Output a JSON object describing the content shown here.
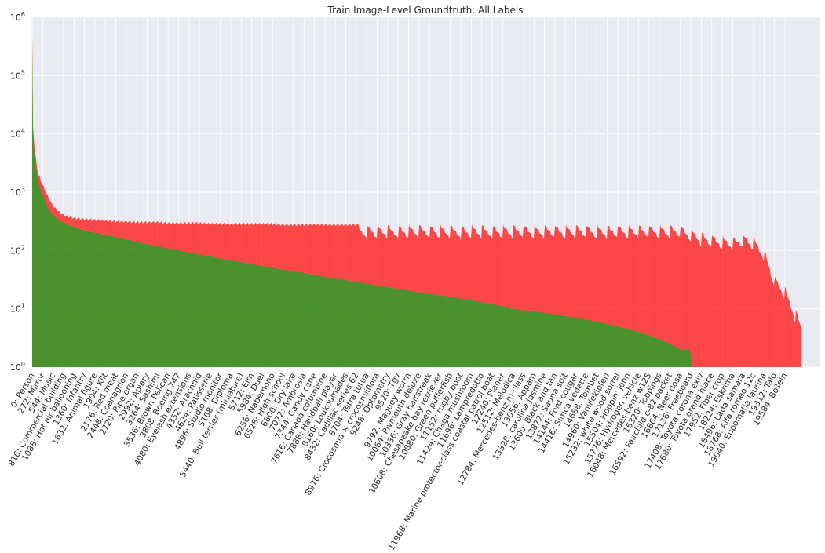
{
  "chart_data": {
    "type": "bar",
    "title": "Train Image-Level Groundtruth: All Labels",
    "xlabel": "",
    "ylabel": "",
    "yscale": "log",
    "ylim": [
      1,
      1000000
    ],
    "grid": true,
    "legend": "none",
    "n_labels": 19995,
    "colors": {
      "green": "#2ca02c",
      "red": "#ff2a2a",
      "plot_bg": "#eaeaf2",
      "grid": "#ffffff"
    },
    "yticks": [
      {
        "value": 1,
        "base": "10",
        "exp": "0"
      },
      {
        "value": 10,
        "base": "10",
        "exp": "1"
      },
      {
        "value": 100,
        "base": "10",
        "exp": "2"
      },
      {
        "value": 1000,
        "base": "10",
        "exp": "3"
      },
      {
        "value": 10000,
        "base": "10",
        "exp": "4"
      },
      {
        "value": 100000,
        "base": "10",
        "exp": "5"
      },
      {
        "value": 1000000,
        "base": "10",
        "exp": "6"
      }
    ],
    "xtick_labels": [
      {
        "index": 0,
        "text": "0: Person"
      },
      {
        "index": 272,
        "text": "272: Mirror"
      },
      {
        "index": 544,
        "text": "544: Music"
      },
      {
        "index": 816,
        "text": "816: Commercial building"
      },
      {
        "index": 1088,
        "text": "1088: Hot air ballooning"
      },
      {
        "index": 1360,
        "text": "1360: Infantry"
      },
      {
        "index": 1632,
        "text": "1632: Animal figure"
      },
      {
        "index": 1904,
        "text": "1904: Kilt"
      },
      {
        "index": 2176,
        "text": "2176: Red meat"
      },
      {
        "index": 2448,
        "text": "2448: Coenagrion"
      },
      {
        "index": 2720,
        "text": "2720: Pipe organ"
      },
      {
        "index": 2992,
        "text": "2992: Apiary"
      },
      {
        "index": 3264,
        "text": "3264: Sashimi"
      },
      {
        "index": 3536,
        "text": "3536: Brown Pelican"
      },
      {
        "index": 3808,
        "text": "3808: Boeing 747"
      },
      {
        "index": 4080,
        "text": "4080: Eyelash extensions"
      },
      {
        "index": 4352,
        "text": "4352: Arachnid"
      },
      {
        "index": 4624,
        "text": "4624: Patisserie"
      },
      {
        "index": 4896,
        "text": "4896: Studio monitor"
      },
      {
        "index": 5168,
        "text": "5168: Diploma"
      },
      {
        "index": 5440,
        "text": "5440: Bull terrier (miniature)"
      },
      {
        "index": 5712,
        "text": "5712: Elm"
      },
      {
        "index": 5984,
        "text": "5984: Duel"
      },
      {
        "index": 6256,
        "text": "6256: Nabemono"
      },
      {
        "index": 6528,
        "text": "6528: High school"
      },
      {
        "index": 6800,
        "text": "6800: Dry lake"
      },
      {
        "index": 7072,
        "text": "7072: Ambrosia"
      },
      {
        "index": 7344,
        "text": "7344: Candy cane"
      },
      {
        "index": 7616,
        "text": "7616: Canada columbine"
      },
      {
        "index": 7888,
        "text": "7888: Handball player"
      },
      {
        "index": 8160,
        "text": "8160: Loukoumades"
      },
      {
        "index": 8432,
        "text": "8432: Cadillac series 62"
      },
      {
        "index": 8704,
        "text": "8704: Tetra tutua"
      },
      {
        "index": 8976,
        "text": "8976: Crocosmia × crocosmiiflora"
      },
      {
        "index": 9248,
        "text": "9248: Optometry"
      },
      {
        "index": 9520,
        "text": "9520: Tgv"
      },
      {
        "index": 9792,
        "text": "9792: Maguey worm"
      },
      {
        "index": 10064,
        "text": "10064: Plymouth deluxe"
      },
      {
        "index": 10336,
        "text": "10336: Gray hairstreak"
      },
      {
        "index": 10608,
        "text": "10608: Chesapeake bay retriever"
      },
      {
        "index": 10880,
        "text": "10880: Green pufferfish"
      },
      {
        "index": 11152,
        "text": "11152: rugby boot"
      },
      {
        "index": 11424,
        "text": "11424: Chaga mushroom"
      },
      {
        "index": 11696,
        "text": "11696: Lampredotto"
      },
      {
        "index": 11968,
        "text": "11968: Marine protector-class coastal patrol boat"
      },
      {
        "index": 12240,
        "text": "12240: Planer"
      },
      {
        "index": 12512,
        "text": "12512: Melodica"
      },
      {
        "index": 12784,
        "text": "12784: Mercedes-benz m-class"
      },
      {
        "index": 13056,
        "text": "13056: Appam"
      },
      {
        "index": 13328,
        "text": "13328: carolina jasmine"
      },
      {
        "index": 13600,
        "text": "13600: Black and tan"
      },
      {
        "index": 13872,
        "text": "13872: Sauna suit"
      },
      {
        "index": 14144,
        "text": "14144: Ford cougar"
      },
      {
        "index": 14416,
        "text": "14416: Simca vedette"
      },
      {
        "index": 14688,
        "text": "14688: Tombet"
      },
      {
        "index": 14960,
        "text": "14960: Vanillekipferl"
      },
      {
        "index": 15232,
        "text": "15232: white wood sorrel"
      },
      {
        "index": 15504,
        "text": "15504: Hoppin' john"
      },
      {
        "index": 15776,
        "text": "15776: Hydrogen vehicle"
      },
      {
        "index": 16048,
        "text": "16048: Mercedes-benz w125"
      },
      {
        "index": 16320,
        "text": "16320: Toppings"
      },
      {
        "index": 16592,
        "text": "16592: Fairchild c-82 packet"
      },
      {
        "index": 16864,
        "text": "16864: Neer dosa"
      },
      {
        "index": 17136,
        "text": "17136: Freeboard"
      },
      {
        "index": 17408,
        "text": "17408: Toyota corona exiv"
      },
      {
        "index": 17680,
        "text": "17680: Toyota grand hiace"
      },
      {
        "index": 17952,
        "text": "17952: Fiber crop"
      },
      {
        "index": 18224,
        "text": "18224: Eskrima"
      },
      {
        "index": 18496,
        "text": "18496: Lada samara"
      },
      {
        "index": 18768,
        "text": "18768: Alfa romeo 12c"
      },
      {
        "index": 19040,
        "text": "19040: Eupomatia laurina"
      },
      {
        "index": 19312,
        "text": "19312: Talo"
      },
      {
        "index": 19584,
        "text": "19584: Bošeln"
      }
    ],
    "series": [
      {
        "name": "",
        "color": "green",
        "x": [
          0,
          3,
          20,
          60,
          150,
          272,
          400,
          544,
          700,
          816,
          1088,
          1360,
          1632,
          1904,
          2176,
          2448,
          2720,
          2992,
          3264,
          3536,
          3808,
          4080,
          4352,
          4624,
          4896,
          5168,
          5440,
          5712,
          5984,
          6256,
          6528,
          6800,
          7072,
          7344,
          7616,
          7888,
          8160,
          8432,
          8704,
          8976,
          9248,
          9520,
          9792,
          10064,
          10336,
          10608,
          10880,
          11152,
          11424,
          11696,
          11968,
          12240,
          12512,
          12784,
          13056,
          13328,
          13600,
          13872,
          14144,
          14416,
          14688,
          14960,
          15232,
          15504,
          15776,
          16048,
          16320,
          16592,
          16864,
          17134,
          17136,
          19994
        ],
        "y": [
          400000,
          20000,
          9000,
          4000,
          1500,
          900,
          550,
          400,
          330,
          300,
          250,
          220,
          200,
          185,
          170,
          155,
          140,
          128,
          118,
          108,
          100,
          92,
          85,
          79,
          73,
          68,
          63,
          58,
          54,
          50,
          47,
          44,
          41,
          38,
          35,
          33,
          31,
          29,
          27,
          25,
          23.5,
          22,
          20.5,
          19,
          18,
          17,
          16,
          15,
          14,
          13,
          12,
          11,
          10,
          9.5,
          9,
          8.5,
          8,
          7.5,
          7,
          6.5,
          6,
          5.5,
          5,
          4.5,
          4,
          3.5,
          3,
          2.5,
          2,
          2,
          1,
          1
        ]
      },
      {
        "name": "",
        "color": "red",
        "x": [
          0,
          3,
          20,
          60,
          150,
          272,
          400,
          544,
          700,
          816,
          1088,
          1360,
          1632,
          1904,
          2176,
          2448,
          2720,
          2992,
          3264,
          3536,
          3808,
          4080,
          4352,
          4624,
          4896,
          5168,
          5440,
          5712,
          5984,
          6256,
          6528,
          6800,
          7072,
          7344,
          7616,
          7888,
          8160,
          8432,
          8704,
          8976,
          9248,
          9520,
          9792,
          10064,
          10336,
          10608,
          10880,
          11152,
          11424,
          11696,
          11968,
          12240,
          12512,
          12784,
          13056,
          13328,
          13600,
          13872,
          14144,
          14416,
          14688,
          14960,
          15232,
          15504,
          15776,
          16048,
          16320,
          16592,
          16864,
          17136,
          17408,
          17680,
          17952,
          18224,
          18496,
          18768,
          19040,
          19312,
          19584,
          19994
        ],
        "y": [
          450000,
          40000,
          15000,
          6000,
          2200,
          1400,
          900,
          600,
          480,
          420,
          380,
          360,
          350,
          340,
          330,
          330,
          320,
          320,
          320,
          310,
          310,
          310,
          310,
          300,
          300,
          300,
          300,
          300,
          300,
          300,
          290,
          290,
          290,
          290,
          290,
          290,
          290,
          290,
          290,
          290,
          290,
          290,
          290,
          290,
          290,
          290,
          290,
          290,
          290,
          290,
          290,
          290,
          290,
          290,
          290,
          290,
          290,
          290,
          290,
          290,
          290,
          290,
          290,
          290,
          290,
          290,
          290,
          290,
          290,
          260,
          220,
          200,
          190,
          180,
          200,
          180,
          120,
          40,
          25,
          7
        ]
      }
    ]
  }
}
